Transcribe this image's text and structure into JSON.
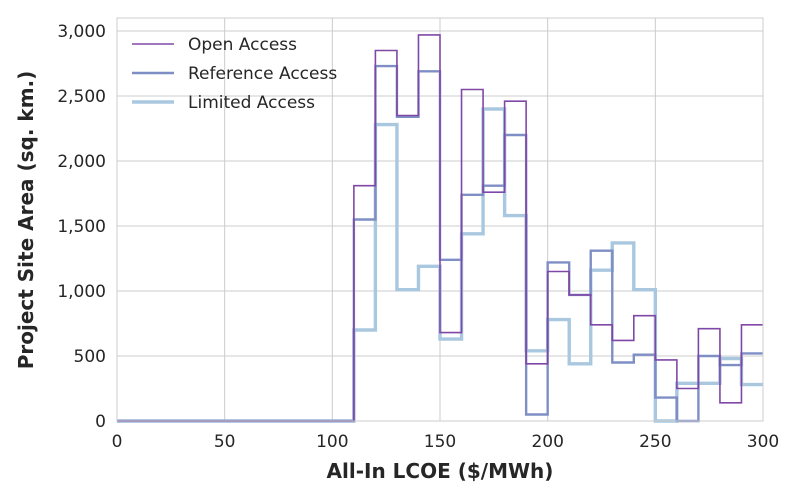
{
  "chart_data": {
    "type": "line",
    "style": "step-histogram",
    "title": "",
    "xlabel": "All-In LCOE ($/MWh)",
    "ylabel": "Project Site Area (sq. km.)",
    "xlim": [
      0,
      300
    ],
    "ylim": [
      0,
      3100
    ],
    "grid": true,
    "legend_position": "top-left",
    "x_ticks": [
      0,
      50,
      100,
      150,
      200,
      250,
      300
    ],
    "x_tick_labels": [
      "0",
      "50",
      "100",
      "150",
      "200",
      "250",
      "300"
    ],
    "y_ticks": [
      0,
      500,
      1000,
      1500,
      2000,
      2500,
      3000
    ],
    "y_tick_labels": [
      "0",
      "500",
      "1,000",
      "1,500",
      "2,000",
      "2,500",
      "3,000"
    ],
    "bin_edges": [
      0,
      10,
      20,
      30,
      40,
      50,
      60,
      70,
      80,
      90,
      100,
      110,
      120,
      130,
      140,
      150,
      160,
      170,
      180,
      190,
      200,
      210,
      220,
      230,
      240,
      250,
      260,
      270,
      280,
      290,
      300
    ],
    "series": [
      {
        "name": "Limited Access",
        "color": "#a9c8e0",
        "values": [
          0,
          0,
          0,
          0,
          0,
          0,
          0,
          0,
          0,
          0,
          0,
          700,
          2280,
          1010,
          1190,
          630,
          1440,
          2400,
          1580,
          540,
          780,
          440,
          1160,
          1370,
          1010,
          0,
          290,
          290,
          480,
          280
        ]
      },
      {
        "name": "Reference Access",
        "color": "#7f8fc6",
        "values": [
          0,
          0,
          0,
          0,
          0,
          0,
          0,
          0,
          0,
          0,
          0,
          1550,
          2730,
          2340,
          2690,
          1240,
          1740,
          1810,
          2200,
          50,
          1220,
          970,
          1310,
          450,
          510,
          180,
          0,
          500,
          430,
          520
        ]
      },
      {
        "name": "Open Access",
        "color": "#8048a6",
        "values": [
          0,
          0,
          0,
          0,
          0,
          0,
          0,
          0,
          0,
          0,
          0,
          1810,
          2850,
          2350,
          2970,
          680,
          2550,
          1760,
          2460,
          440,
          1150,
          970,
          740,
          620,
          810,
          470,
          250,
          710,
          140,
          740
        ]
      }
    ],
    "legend_order": [
      "Open Access",
      "Reference Access",
      "Limited Access"
    ]
  }
}
